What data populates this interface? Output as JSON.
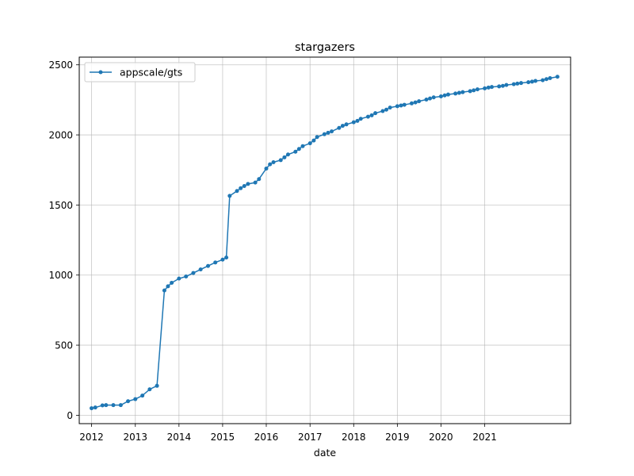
{
  "chart_data": {
    "type": "line",
    "title": "stargazers",
    "xlabel": "date",
    "ylabel": "",
    "ylim": [
      -60,
      2555
    ],
    "xlim": [
      "2011-09-20",
      "2022-12-20"
    ],
    "grid": true,
    "legend_position": "top-left",
    "x_tick_labels": [
      "2012",
      "2013",
      "2014",
      "2015",
      "2016",
      "2017",
      "2018",
      "2019",
      "2020",
      "2021"
    ],
    "x_tick_dates": [
      "2012-01-01",
      "2013-01-01",
      "2014-01-01",
      "2015-01-01",
      "2016-01-01",
      "2017-01-01",
      "2018-01-01",
      "2019-01-01",
      "2020-01-01",
      "2021-01-01"
    ],
    "y_tick_values": [
      0,
      500,
      1000,
      1500,
      2000,
      2500
    ],
    "y_tick_labels": [
      "0",
      "500",
      "1000",
      "1500",
      "2000",
      "2500"
    ],
    "color": "#1f77b4",
    "series": [
      {
        "name": "appscale/gts",
        "x": [
          "2012-01-01",
          "2012-02-01",
          "2012-04-01",
          "2012-05-01",
          "2012-07-01",
          "2012-09-01",
          "2012-11-01",
          "2013-01-01",
          "2013-03-01",
          "2013-05-01",
          "2013-07-01",
          "2013-09-01",
          "2013-10-01",
          "2013-11-01",
          "2014-01-01",
          "2014-03-01",
          "2014-05-01",
          "2014-07-01",
          "2014-09-01",
          "2014-11-01",
          "2015-01-01",
          "2015-02-01",
          "2015-03-01",
          "2015-05-01",
          "2015-06-01",
          "2015-07-01",
          "2015-08-01",
          "2015-10-01",
          "2015-11-01",
          "2016-01-01",
          "2016-02-01",
          "2016-03-01",
          "2016-05-01",
          "2016-06-01",
          "2016-07-01",
          "2016-09-01",
          "2016-10-01",
          "2016-11-01",
          "2017-01-01",
          "2017-02-01",
          "2017-03-01",
          "2017-05-01",
          "2017-06-01",
          "2017-07-01",
          "2017-09-01",
          "2017-10-01",
          "2017-11-01",
          "2018-01-01",
          "2018-02-01",
          "2018-03-01",
          "2018-05-01",
          "2018-06-01",
          "2018-07-01",
          "2018-09-01",
          "2018-10-01",
          "2018-11-01",
          "2019-01-01",
          "2019-02-01",
          "2019-03-01",
          "2019-05-01",
          "2019-06-01",
          "2019-07-01",
          "2019-09-01",
          "2019-10-01",
          "2019-11-01",
          "2020-01-01",
          "2020-02-01",
          "2020-03-01",
          "2020-05-01",
          "2020-06-01",
          "2020-07-01",
          "2020-09-01",
          "2020-10-01",
          "2020-11-01",
          "2021-01-01",
          "2021-02-01",
          "2021-03-01",
          "2021-05-01",
          "2021-06-01",
          "2021-07-01",
          "2021-09-01",
          "2021-10-01",
          "2021-11-01",
          "2022-01-01",
          "2022-02-01",
          "2022-03-01",
          "2022-05-01",
          "2022-06-01",
          "2022-07-01",
          "2022-09-01"
        ],
        "y": [
          50,
          55,
          70,
          72,
          72,
          72,
          100,
          115,
          140,
          185,
          210,
          890,
          920,
          945,
          975,
          990,
          1015,
          1040,
          1065,
          1090,
          1110,
          1125,
          1565,
          1600,
          1620,
          1635,
          1650,
          1660,
          1685,
          1760,
          1790,
          1805,
          1820,
          1840,
          1860,
          1880,
          1900,
          1920,
          1940,
          1960,
          1985,
          2005,
          2015,
          2025,
          2050,
          2065,
          2075,
          2090,
          2100,
          2115,
          2130,
          2140,
          2155,
          2170,
          2180,
          2195,
          2205,
          2210,
          2215,
          2225,
          2232,
          2240,
          2252,
          2260,
          2268,
          2275,
          2282,
          2288,
          2295,
          2300,
          2305,
          2312,
          2318,
          2325,
          2332,
          2338,
          2342,
          2346,
          2350,
          2356,
          2362,
          2366,
          2370,
          2376,
          2380,
          2385,
          2390,
          2398,
          2405,
          2415
        ]
      }
    ]
  }
}
